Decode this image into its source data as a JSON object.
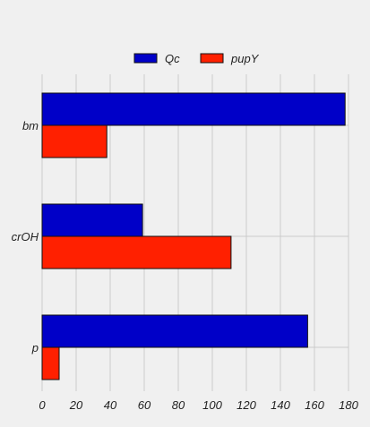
{
  "chart_data": {
    "type": "bar",
    "orientation": "horizontal",
    "categories": [
      "bm",
      "crOH",
      "p"
    ],
    "series": [
      {
        "name": "Qc",
        "values": [
          178,
          59,
          156
        ],
        "color": "#0000c8"
      },
      {
        "name": "pupY",
        "values": [
          38,
          111,
          10
        ],
        "color": "#ff2000"
      }
    ],
    "xlim": [
      0,
      180
    ],
    "xticks": [
      0,
      20,
      40,
      60,
      80,
      100,
      120,
      140,
      160,
      180
    ],
    "xlabel": "",
    "ylabel": "",
    "grid": true,
    "legend": "top-center",
    "background": "#f0f0f0",
    "grid_color": "#cbcbcb"
  }
}
